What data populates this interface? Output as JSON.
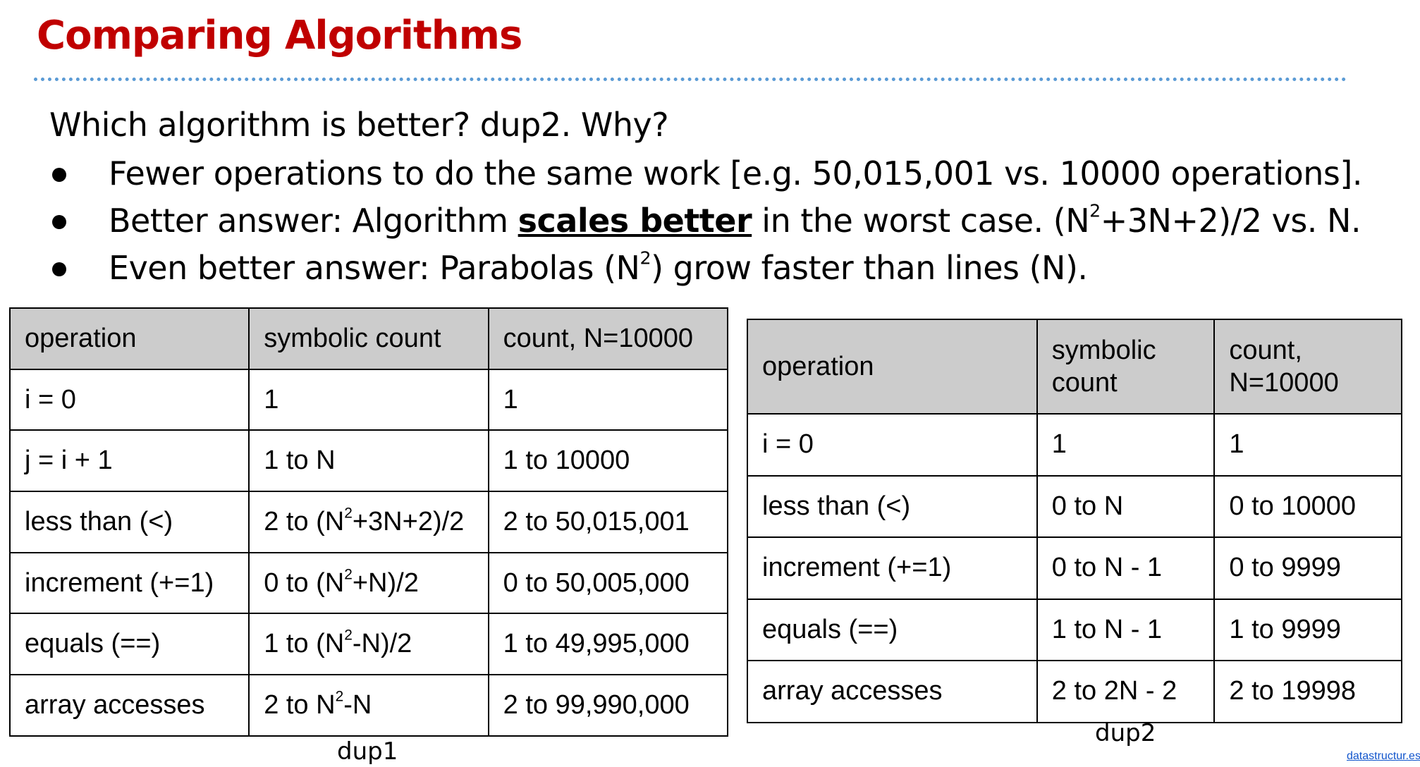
{
  "slide": {
    "title": "Comparing Algorithms",
    "question": "Which algorithm is better? dup2. Why?",
    "bullets": {
      "b1": "Fewer operations to do the same work [e.g. 50,015,001 vs. 10000 operations].",
      "b2_pre": "Better answer: Algorithm ",
      "b2_emph": "scales better",
      "b2_mid": " in the worst case. (N",
      "b2_sup": "2",
      "b2_post": "+3N+2)/2 vs. N.",
      "b3_pre": "Even better answer: Parabolas (N",
      "b3_sup": "2",
      "b3_post": ") grow faster than lines (N)."
    }
  },
  "dup1": {
    "caption": "dup1",
    "headers": [
      "operation",
      "symbolic count",
      "count, N=10000"
    ],
    "rows": [
      {
        "op": "i = 0",
        "sym_pre": "1",
        "sym_sup": "",
        "sym_post": "",
        "count": "1"
      },
      {
        "op": "j = i + 1",
        "sym_pre": "1 to N",
        "sym_sup": "",
        "sym_post": "",
        "count": "1 to 10000"
      },
      {
        "op": "less than (<)",
        "sym_pre": "2 to (N",
        "sym_sup": "2",
        "sym_post": "+3N+2)/2",
        "count": "2 to 50,015,001"
      },
      {
        "op": "increment (+=1)",
        "sym_pre": "0 to (N",
        "sym_sup": "2",
        "sym_post": "+N)/2",
        "count": "0 to 50,005,000"
      },
      {
        "op": "equals (==)",
        "sym_pre": "1 to (N",
        "sym_sup": "2",
        "sym_post": "-N)/2",
        "count": "1 to 49,995,000"
      },
      {
        "op": "array accesses",
        "sym_pre": "2 to N",
        "sym_sup": "2",
        "sym_post": "-N",
        "count": "2 to 99,990,000"
      }
    ]
  },
  "dup2": {
    "caption": "dup2",
    "headers": [
      "operation",
      "symbolic count",
      "count, N=10000"
    ],
    "rows": [
      {
        "op": "i = 0",
        "sym": "1",
        "count": "1"
      },
      {
        "op": "less than (<)",
        "sym": "0 to N",
        "count": "0 to 10000"
      },
      {
        "op": "increment (+=1)",
        "sym": "0 to N - 1",
        "count": "0 to 9999"
      },
      {
        "op": "equals (==)",
        "sym": "1 to N - 1",
        "count": "1 to 9999"
      },
      {
        "op": "array accesses",
        "sym": "2 to 2N - 2",
        "count": "2 to 19998"
      }
    ]
  },
  "footer": {
    "link": "datastructur.es"
  },
  "colors": {
    "title": "#c00000",
    "divider": "#5b9bd5",
    "header_bg": "#cccccc",
    "link": "#1155cc"
  }
}
